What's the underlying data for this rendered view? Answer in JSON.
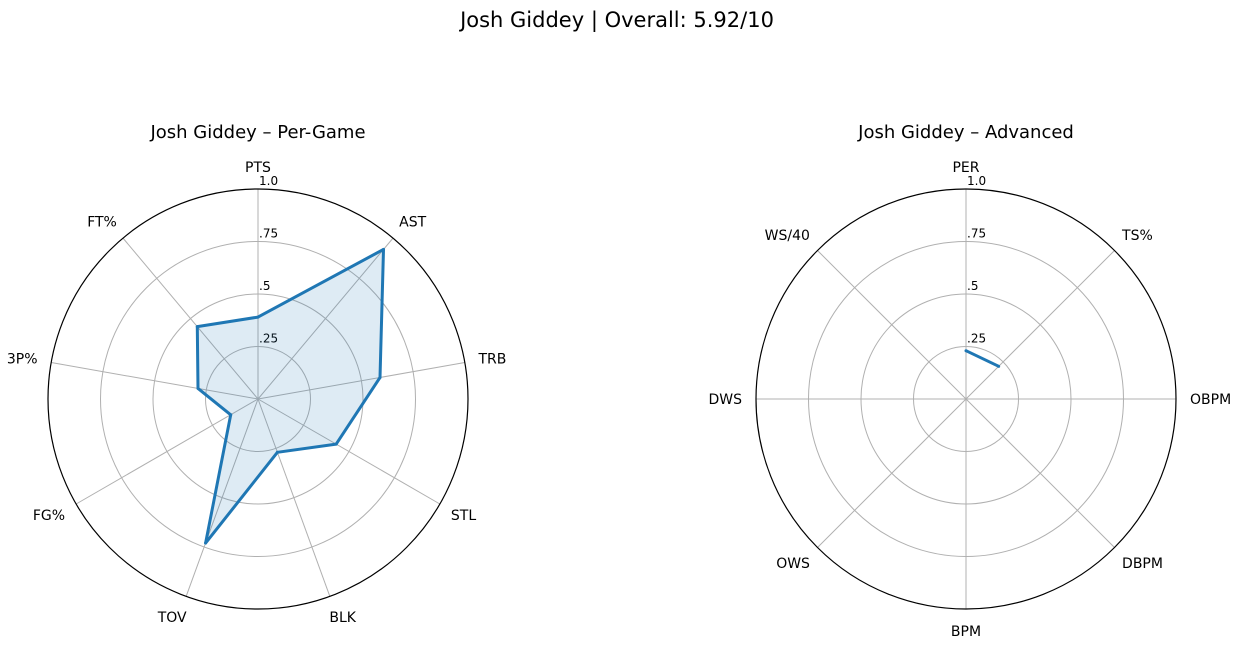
{
  "figure": {
    "suptitle": "Josh Giddey | Overall: 5.92/10"
  },
  "chart_data": [
    {
      "type": "radar",
      "title": "Josh Giddey – Per-Game",
      "categories": [
        "PTS",
        "AST",
        "TRB",
        "STL",
        "BLK",
        "TOV",
        "FG%",
        "3P%",
        "FT%"
      ],
      "values": [
        0.39,
        0.93,
        0.59,
        0.43,
        0.27,
        0.73,
        0.15,
        0.29,
        0.45
      ],
      "rlim": [
        0,
        1.0
      ],
      "rticks": [
        0.25,
        0.5,
        0.75,
        1.0
      ],
      "rtick_labels": [
        ".25",
        ".5",
        ".75",
        "1.0"
      ],
      "closed": true,
      "filled": true,
      "grid": true,
      "color": "#1f77b4"
    },
    {
      "type": "radar",
      "title": "Josh Giddey – Advanced",
      "categories": [
        "PER",
        "TS%",
        "OBPM",
        "DBPM",
        "BPM",
        "OWS",
        "DWS",
        "WS/40"
      ],
      "values": [
        0.23,
        0.22,
        null,
        null,
        null,
        null,
        null,
        null
      ],
      "rlim": [
        0,
        1.0
      ],
      "rticks": [
        0.25,
        0.5,
        0.75,
        1.0
      ],
      "rtick_labels": [
        ".25",
        ".5",
        ".75",
        "1.0"
      ],
      "closed": false,
      "filled": false,
      "grid": true,
      "color": "#1f77b4"
    }
  ]
}
